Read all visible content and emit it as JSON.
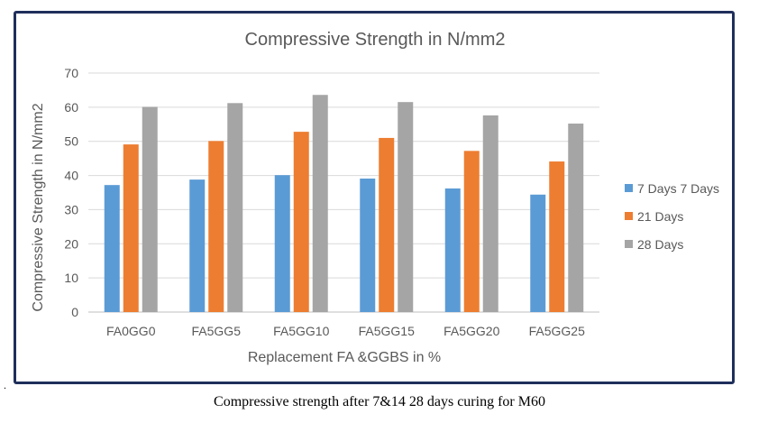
{
  "chart_data": {
    "type": "bar",
    "title": "Compressive Strength in N/mm2",
    "xlabel": "Replacement FA &GGBS  in %",
    "ylabel": "Compressive Strength in N/mm2",
    "ylim": [
      0,
      70
    ],
    "yticks": [
      "0",
      "10",
      "20",
      "30",
      "40",
      "50",
      "60",
      "70"
    ],
    "grid": true,
    "legend_position": "right",
    "categories": [
      "FA0GG0",
      "FA5GG5",
      "FA5GG10",
      "FA5GG15",
      "FA5GG20",
      "FA5GG25"
    ],
    "series": [
      {
        "name": "7 Days 7 Days",
        "color": "#5b9bd5",
        "values": [
          37.2,
          38.8,
          40.1,
          39.1,
          36.2,
          34.4
        ]
      },
      {
        "name": "21 Days",
        "color": "#ed7d31",
        "values": [
          49.1,
          50.1,
          52.8,
          51.0,
          47.2,
          44.1
        ]
      },
      {
        "name": "28 Days",
        "color": "#a5a5a5",
        "values": [
          60.1,
          61.2,
          63.6,
          61.5,
          57.6,
          55.2
        ]
      }
    ]
  },
  "caption": "Compressive strength after 7&14 28 days curing for M60",
  "margin_dot": "."
}
